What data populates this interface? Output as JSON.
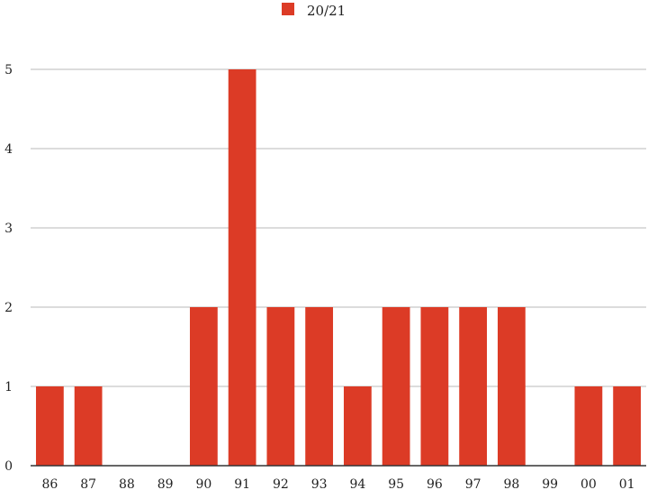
{
  "chart_data": {
    "type": "bar",
    "categories": [
      "86",
      "87",
      "88",
      "89",
      "90",
      "91",
      "92",
      "93",
      "94",
      "95",
      "96",
      "97",
      "98",
      "99",
      "00",
      "01"
    ],
    "series": [
      {
        "name": "20/21",
        "values": [
          1,
          1,
          0,
          0,
          2,
          5,
          2,
          2,
          1,
          2,
          2,
          2,
          2,
          0,
          1,
          1
        ],
        "color": "#dc3b26"
      }
    ],
    "ylim": [
      0,
      5
    ],
    "yticks": [
      0,
      1,
      2,
      3,
      4,
      5
    ],
    "grid": true,
    "legend_position": "top"
  }
}
